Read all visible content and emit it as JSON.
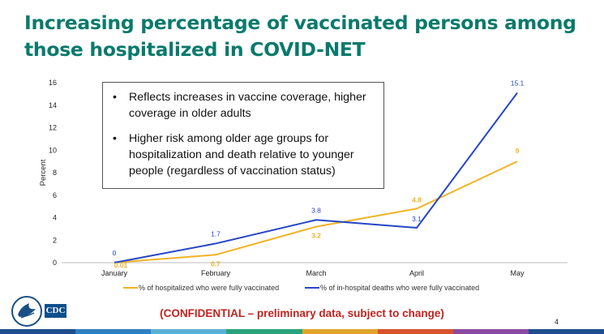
{
  "title": "Increasing percentage of vaccinated persons among those hospitalized in COVID-NET",
  "callout": {
    "bullet_char": "•",
    "items": [
      "Reflects increases in vaccine coverage, higher coverage in older adults",
      "Higher risk among older age groups for hospitalization and death relative to younger people (regardless of vaccination status)"
    ]
  },
  "footer": {
    "confidential": "(CONFIDENTIAL – preliminary data, subject to change)",
    "page_number": "4",
    "logo_text": "CDC"
  },
  "colors": {
    "title": "#0a7a6c",
    "hospitalized": "#f0b323",
    "deaths": "#2545c8",
    "confidential": "#c0231f"
  },
  "chart_data": {
    "type": "line",
    "title": "",
    "xlabel": "",
    "ylabel": "Percent",
    "ylim": [
      0,
      16
    ],
    "yticks": [
      0,
      2,
      4,
      6,
      8,
      10,
      12,
      14,
      16
    ],
    "grid": false,
    "legend_position": "bottom",
    "categories": [
      "January",
      "February",
      "March",
      "April",
      "May"
    ],
    "series": [
      {
        "name": "% of hospitalized who were fully vaccinated",
        "color": "#f0b323",
        "values": [
          0.01,
          0.7,
          3.2,
          4.8,
          9
        ],
        "labels": [
          "0.01",
          "0.7",
          "3.2",
          "4.8",
          "9"
        ]
      },
      {
        "name": "% of in-hospital deaths who were fully vaccinated",
        "color": "#2545c8",
        "values": [
          0,
          1.7,
          3.8,
          3.1,
          15.1
        ],
        "labels": [
          "0",
          "1.7",
          "3.8",
          "3.1",
          "15.1"
        ]
      }
    ]
  }
}
